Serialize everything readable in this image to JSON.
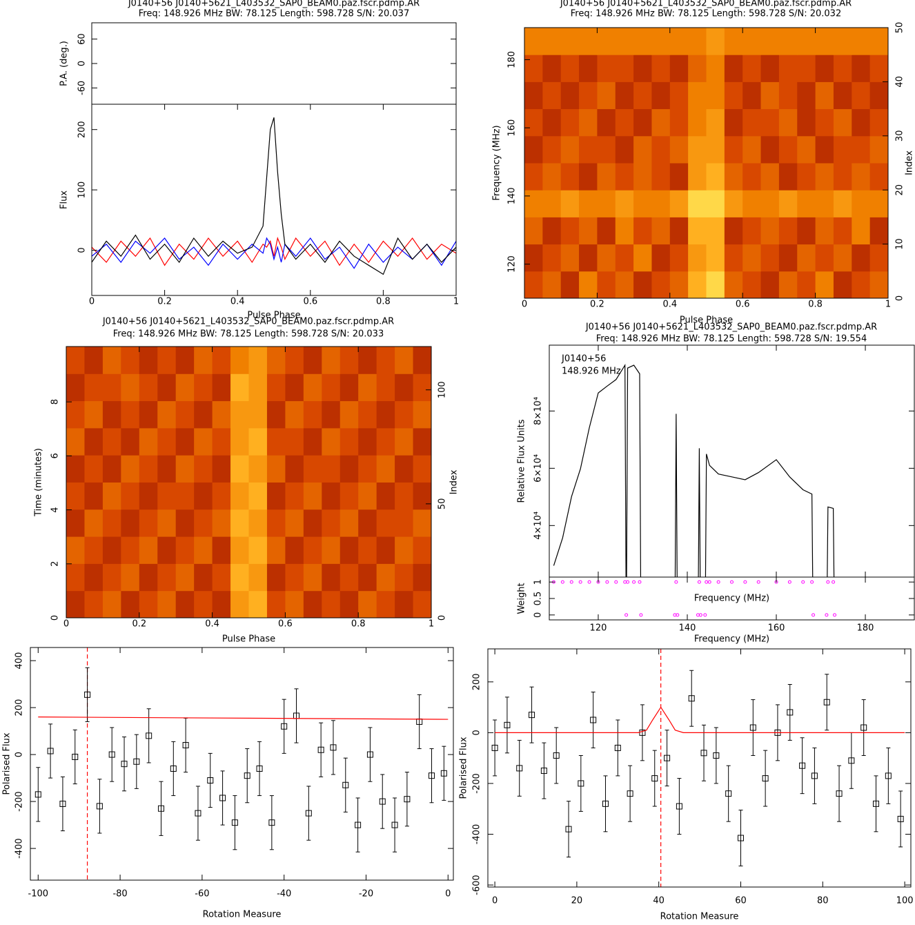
{
  "chart_data": [
    {
      "type": "profile",
      "title": "J0140+56  J0140+5621_L403532_SAP0_BEAM0.paz.fscr.pdmp.AR",
      "subtitle": "Freq: 148.926 MHz BW: 78.125 Length: 598.728 S/N: 20.037",
      "x": [
        0,
        0.04,
        0.08,
        0.12,
        0.16,
        0.2,
        0.24,
        0.28,
        0.32,
        0.36,
        0.4,
        0.44,
        0.47,
        0.48,
        0.49,
        0.5,
        0.51,
        0.52,
        0.53,
        0.56,
        0.6,
        0.64,
        0.68,
        0.72,
        0.76,
        0.8,
        0.84,
        0.88,
        0.92,
        0.96,
        1
      ],
      "series": [
        {
          "color": "#ff0000",
          "values": [
            5,
            -20,
            15,
            -10,
            20,
            -25,
            10,
            -15,
            20,
            -10,
            15,
            -20,
            10,
            5,
            15,
            -10,
            20,
            5,
            -15,
            20,
            -10,
            15,
            -25,
            10,
            -20,
            15,
            -10,
            20,
            -15,
            10,
            -5
          ]
        },
        {
          "color": "#0000ff",
          "values": [
            -10,
            10,
            -20,
            15,
            -5,
            20,
            -15,
            5,
            -25,
            10,
            -15,
            10,
            -5,
            20,
            10,
            -15,
            5,
            -20,
            10,
            -10,
            20,
            -15,
            5,
            -30,
            10,
            -20,
            5,
            -15,
            10,
            -25,
            15
          ]
        },
        {
          "color": "#000000",
          "values": [
            -20,
            15,
            -10,
            25,
            -15,
            10,
            -20,
            20,
            -10,
            15,
            -5,
            5,
            40,
            120,
            200,
            220,
            130,
            60,
            10,
            -15,
            10,
            -20,
            15,
            -10,
            -25,
            -40,
            20,
            -15,
            10,
            -20,
            5
          ]
        }
      ],
      "xlim": [
        0,
        1
      ],
      "xticks": [
        0,
        0.2,
        0.4,
        0.6,
        0.8,
        1
      ],
      "xlabel": "Pulse Phase",
      "ylim": [
        -75,
        242
      ],
      "yticks": [
        0,
        100,
        200
      ],
      "ylabel": "Flux",
      "pa_ylim": [
        -100,
        100
      ],
      "pa_yticks": [
        -60,
        0,
        60
      ],
      "pa_ylabel": "P.A. (deg.)"
    },
    {
      "type": "heatmap",
      "title": "J0140+56  J0140+5621_L403532_SAP0_BEAM0.paz.fscr.pdmp.AR",
      "subtitle": "Freq: 148.926 MHz BW: 78.125 Length: 598.728 S/N: 20.032",
      "xlim": [
        0,
        1
      ],
      "xticks": [
        0,
        0.2,
        0.4,
        0.6,
        0.8,
        1
      ],
      "xlabel": "Pulse Phase",
      "ylim": [
        110,
        189.4
      ],
      "yticks": [
        120,
        140,
        160,
        180
      ],
      "ylabel": "Frequency (MHz)",
      "y2lim": [
        0,
        50
      ],
      "y2ticks": [
        0,
        10,
        20,
        30,
        40,
        50
      ],
      "y2label": "Index",
      "zlim": [
        0,
        10
      ],
      "colormap": [
        "#4a0000",
        "#a01800",
        "#d84800",
        "#f08000",
        "#ffb020",
        "#ffff70"
      ],
      "z": [
        [
          4,
          5,
          3,
          6,
          4,
          5,
          3,
          4,
          5,
          8,
          9,
          5,
          4,
          3,
          5,
          4,
          6,
          3,
          4,
          5
        ],
        [
          3,
          4,
          5,
          3,
          5,
          4,
          6,
          3,
          4,
          7,
          8,
          4,
          5,
          4,
          3,
          5,
          4,
          5,
          3,
          4
        ],
        [
          5,
          3,
          4,
          5,
          3,
          6,
          4,
          5,
          3,
          8,
          8,
          3,
          4,
          5,
          4,
          3,
          5,
          4,
          6,
          3
        ],
        [
          6,
          6,
          7,
          6,
          6,
          7,
          6,
          6,
          7,
          9,
          9,
          7,
          6,
          6,
          7,
          6,
          6,
          7,
          6,
          6
        ],
        [
          4,
          5,
          4,
          3,
          5,
          4,
          5,
          4,
          3,
          7,
          8,
          5,
          4,
          5,
          3,
          4,
          5,
          4,
          5,
          4
        ],
        [
          3,
          4,
          5,
          4,
          4,
          3,
          5,
          4,
          5,
          7,
          7,
          4,
          5,
          3,
          4,
          5,
          3,
          4,
          4,
          5
        ],
        [
          4,
          3,
          4,
          5,
          3,
          4,
          3,
          5,
          4,
          6,
          7,
          3,
          4,
          4,
          5,
          3,
          4,
          5,
          3,
          4
        ],
        [
          3,
          4,
          3,
          4,
          5,
          3,
          4,
          3,
          4,
          6,
          6,
          4,
          3,
          5,
          4,
          3,
          5,
          3,
          4,
          3
        ],
        [
          4,
          3,
          4,
          3,
          4,
          4,
          3,
          4,
          3,
          5,
          6,
          3,
          4,
          3,
          4,
          4,
          3,
          4,
          3,
          4
        ],
        [
          6,
          6,
          6,
          6,
          6,
          6,
          6,
          6,
          6,
          6,
          7,
          6,
          6,
          6,
          6,
          6,
          6,
          6,
          6,
          6
        ]
      ]
    },
    {
      "type": "heatmap",
      "title": "J0140+56  J0140+5621_L403532_SAP0_BEAM0.paz.fscr.pdmp.AR",
      "subtitle": "Freq: 148.926 MHz BW: 78.125 Length: 598.728 S/N: 20.033",
      "xlim": [
        0,
        1
      ],
      "xticks": [
        0,
        0.2,
        0.4,
        0.6,
        0.8,
        1
      ],
      "xlabel": "Pulse Phase",
      "ylim": [
        0,
        10.05
      ],
      "yticks": [
        0,
        2,
        4,
        6,
        8
      ],
      "ylabel": "Time (minutes)",
      "y2lim": [
        0,
        119
      ],
      "y2ticks": [
        0,
        50,
        100
      ],
      "y2label": "Index",
      "zlim": [
        0,
        10
      ],
      "colormap": [
        "#4a0000",
        "#a01800",
        "#d84800",
        "#f08000",
        "#ffb020",
        "#ffff70"
      ],
      "z": [
        [
          3,
          4,
          5,
          3,
          4,
          5,
          3,
          4,
          3,
          7,
          8,
          4,
          5,
          3,
          4,
          3,
          5,
          4,
          3,
          4
        ],
        [
          4,
          3,
          4,
          5,
          3,
          4,
          5,
          3,
          4,
          8,
          7,
          3,
          4,
          5,
          3,
          4,
          3,
          5,
          4,
          3
        ],
        [
          5,
          4,
          3,
          4,
          5,
          3,
          4,
          5,
          3,
          7,
          8,
          5,
          3,
          4,
          5,
          3,
          4,
          3,
          5,
          4
        ],
        [
          3,
          5,
          4,
          3,
          4,
          5,
          3,
          4,
          5,
          8,
          7,
          4,
          5,
          3,
          4,
          5,
          3,
          4,
          4,
          5
        ],
        [
          4,
          3,
          5,
          4,
          3,
          4,
          4,
          3,
          4,
          7,
          8,
          3,
          4,
          5,
          3,
          4,
          5,
          3,
          4,
          3
        ],
        [
          3,
          4,
          3,
          5,
          4,
          3,
          5,
          4,
          3,
          8,
          7,
          5,
          3,
          4,
          4,
          3,
          4,
          5,
          3,
          4
        ],
        [
          5,
          3,
          4,
          3,
          5,
          4,
          3,
          5,
          4,
          7,
          8,
          4,
          4,
          3,
          5,
          4,
          3,
          4,
          5,
          3
        ],
        [
          4,
          5,
          3,
          4,
          3,
          5,
          4,
          3,
          5,
          7,
          7,
          3,
          5,
          4,
          3,
          5,
          4,
          3,
          4,
          5
        ],
        [
          3,
          4,
          4,
          5,
          4,
          3,
          5,
          4,
          3,
          8,
          7,
          4,
          3,
          5,
          4,
          3,
          5,
          4,
          3,
          4
        ],
        [
          4,
          3,
          5,
          4,
          3,
          4,
          3,
          5,
          4,
          6,
          7,
          5,
          4,
          3,
          5,
          4,
          3,
          4,
          5,
          3
        ]
      ]
    },
    {
      "type": "bandpass",
      "title": "J0140+56  J0140+5621_L403532_SAP0_BEAM0.paz.fscr.pdmp.AR",
      "subtitle": "Freq: 148.926 MHz BW: 78.125 Length: 598.728 S/N: 19.554",
      "annotations": [
        "J0140+56",
        "148.926 MHz"
      ],
      "x": [
        110,
        112,
        114,
        116,
        118,
        120,
        122,
        124,
        126,
        126.3,
        126.6,
        128,
        129.3,
        129.6,
        137.2,
        137.5,
        137.8,
        142.4,
        142.7,
        143.0,
        144.0,
        144.3,
        145.0,
        147,
        150,
        153,
        156,
        160,
        163,
        166,
        168,
        168.3,
        171.3,
        171.6,
        172.8,
        173.1
      ],
      "values": [
        26000,
        35700,
        50100,
        59800,
        74200,
        86300,
        88700,
        91000,
        96000,
        0,
        95000,
        96000,
        93000,
        0,
        0,
        79000,
        0,
        0,
        67000,
        0,
        0,
        65000,
        61000,
        58000,
        57000,
        56000,
        58500,
        63000,
        57000,
        52500,
        51000,
        0,
        0,
        46500,
        46000,
        0
      ],
      "weights": [
        1,
        1,
        1,
        1,
        1,
        1,
        1,
        1,
        1,
        0,
        1,
        1,
        1,
        0,
        0,
        1,
        0,
        0,
        1,
        0,
        0,
        1,
        1,
        1,
        1,
        1,
        1,
        1,
        1,
        1,
        1,
        0,
        0,
        1,
        1,
        0
      ],
      "color": "#000000",
      "weight_color": "#ff00ff",
      "xlim": [
        109,
        191
      ],
      "xticks": [
        120,
        140,
        160,
        180
      ],
      "xlabel": "Frequency (MHz)",
      "ylim": [
        22000,
        103000
      ],
      "yticks": [
        {
          "value": 40000,
          "label": "4×10⁴"
        },
        {
          "value": 60000,
          "label": "6×10⁴"
        },
        {
          "value": 80000,
          "label": "8×10⁴"
        }
      ],
      "ylabel": "Relative Flux Units",
      "weight_ylim": [
        -0.15,
        1.15
      ],
      "weight_yticks": [
        0,
        0.5,
        1
      ],
      "weight_ylabel": "Weight"
    },
    {
      "type": "errorbar",
      "x": [
        -100,
        -97,
        -94,
        -91,
        -88,
        -85,
        -82,
        -79,
        -76,
        -73,
        -70,
        -67,
        -64,
        -61,
        -58,
        -55,
        -52,
        -49,
        -46,
        -43,
        -40,
        -37,
        -34,
        -31,
        -28,
        -25,
        -22,
        -19,
        -16,
        -13,
        -10,
        -7,
        -4,
        -1
      ],
      "values": [
        -170,
        15,
        -210,
        -10,
        255,
        -220,
        0,
        -40,
        -30,
        80,
        -230,
        -60,
        40,
        -250,
        -110,
        -185,
        -290,
        -90,
        -60,
        -290,
        120,
        165,
        -250,
        20,
        30,
        -130,
        -300,
        0,
        -200,
        -300,
        -190,
        140,
        -90,
        -80
      ],
      "error": 115,
      "color": "#000000",
      "fit": {
        "x": [
          -100,
          0
        ],
        "values": [
          160,
          150
        ],
        "color": "#ff0000"
      },
      "peak_x": -88,
      "xlim": [
        -101.9,
        1.3
      ],
      "xticks": [
        -100,
        -80,
        -60,
        -40,
        -20,
        0
      ],
      "xlabel": "Rotation Measure",
      "ylim": [
        -535,
        456
      ],
      "yticks": [
        -400,
        -200,
        0,
        200,
        400
      ],
      "ylabel": "Polarised Flux"
    },
    {
      "type": "errorbar",
      "x": [
        0,
        3,
        6,
        9,
        12,
        15,
        18,
        21,
        24,
        27,
        30,
        33,
        36,
        39,
        42,
        45,
        48,
        51,
        54,
        57,
        60,
        63,
        66,
        69,
        72,
        75,
        78,
        81,
        84,
        87,
        90,
        93,
        96,
        99
      ],
      "values": [
        -60,
        30,
        -140,
        70,
        -150,
        -90,
        -380,
        -200,
        50,
        -280,
        -60,
        -240,
        0,
        -180,
        -100,
        -290,
        135,
        -80,
        -90,
        -240,
        -415,
        20,
        -180,
        0,
        80,
        -130,
        -170,
        120,
        -240,
        -110,
        20,
        -280,
        -170,
        -340
      ],
      "error": 110,
      "color": "#000000",
      "fit": {
        "x": [
          0,
          35,
          37,
          38.5,
          40.5,
          42.5,
          44,
          46,
          100
        ],
        "values": [
          0,
          0,
          10,
          50,
          100,
          50,
          10,
          0,
          0
        ],
        "color": "#ff0000"
      },
      "peak_x": 40.5,
      "xlim": [
        -1.7,
        101.5
      ],
      "xticks": [
        0,
        20,
        40,
        60,
        80,
        100
      ],
      "xlabel": "Rotation Measure",
      "ylim": [
        -608,
        330
      ],
      "yticks": [
        -600,
        -400,
        -200,
        0,
        200
      ],
      "ylabel": "Polarised Flux"
    }
  ]
}
